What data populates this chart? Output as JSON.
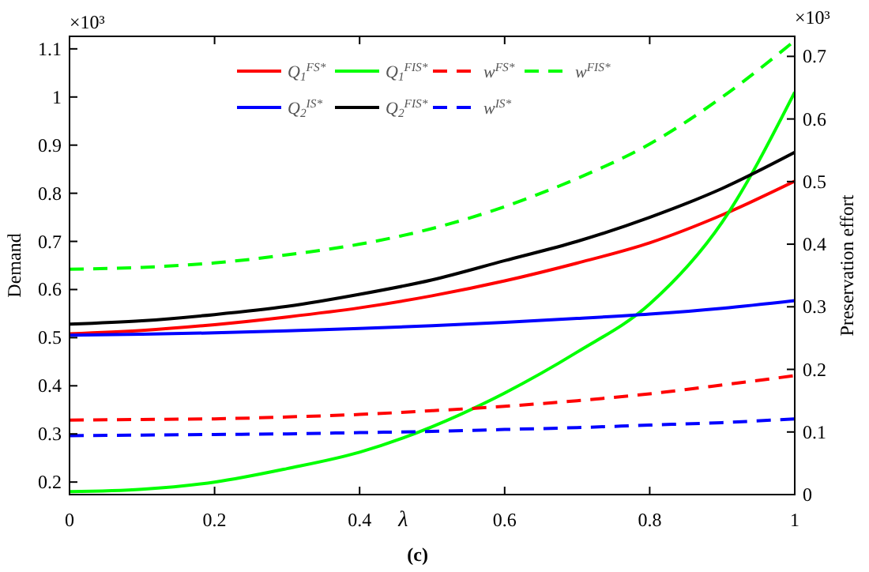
{
  "chart_data": {
    "type": "line",
    "xlabel": "λ",
    "ylabel": "Demand",
    "y2label": "Preservation effort",
    "x": [
      0,
      0.1,
      0.2,
      0.3,
      0.4,
      0.5,
      0.6,
      0.7,
      0.8,
      0.9,
      1
    ],
    "xlim": [
      0,
      1
    ],
    "xticks": [
      0,
      0.2,
      0.4,
      0.6,
      0.8,
      1
    ],
    "ylim": [
      0.174,
      1.126
    ],
    "yticks": [
      0.2,
      0.3,
      0.4,
      0.5,
      0.6,
      0.7,
      0.8,
      0.9,
      1,
      1.1
    ],
    "y2lim": [
      0,
      0.732
    ],
    "y2ticks": [
      0,
      0.1,
      0.2,
      0.3,
      0.4,
      0.5,
      0.6,
      0.7
    ],
    "grid": false,
    "legend": "top",
    "annotations": [
      "×10³",
      "×10³",
      "(c)"
    ],
    "series": [
      {
        "name": "Q$_{1}$$^{FS*}$",
        "color": "#ff0000",
        "line_style": "solid",
        "values": [
          0.508,
          0.515,
          0.527,
          0.543,
          0.562,
          0.587,
          0.618,
          0.655,
          0.697,
          0.755,
          0.825
        ]
      },
      {
        "name": "Q$_{1}$$^{FIS*}$",
        "color": "#00ff00",
        "line_style": "solid",
        "values": [
          0.18,
          0.185,
          0.2,
          0.228,
          0.262,
          0.315,
          0.385,
          0.47,
          0.57,
          0.74,
          1.01
        ]
      },
      {
        "name": "w$^{FS*}$",
        "color": "#ff0000",
        "line_style": "dashed",
        "axis": "y2",
        "values": [
          0.119,
          0.12,
          0.121,
          0.124,
          0.128,
          0.134,
          0.141,
          0.15,
          0.161,
          0.175,
          0.19
        ]
      },
      {
        "name": "w$^{FIS*}$",
        "color": "#00ff00",
        "line_style": "dashed",
        "axis": "y2",
        "values": [
          0.36,
          0.363,
          0.37,
          0.383,
          0.4,
          0.425,
          0.46,
          0.505,
          0.56,
          0.635,
          0.725
        ]
      },
      {
        "name": "Q$_{2}$$^{IS*}$",
        "color": "#0000ff",
        "line_style": "solid",
        "values": [
          0.505,
          0.507,
          0.51,
          0.514,
          0.519,
          0.525,
          0.532,
          0.54,
          0.549,
          0.561,
          0.577
        ]
      },
      {
        "name": "Q$_{2}$$^{FIS*}$",
        "color": "#000000",
        "line_style": "solid",
        "values": [
          0.528,
          0.535,
          0.548,
          0.565,
          0.59,
          0.62,
          0.66,
          0.7,
          0.75,
          0.81,
          0.885
        ]
      },
      {
        "name": "w$^{IS*}$",
        "color": "#0000ff",
        "line_style": "dashed",
        "axis": "y2",
        "values": [
          0.094,
          0.095,
          0.096,
          0.097,
          0.099,
          0.101,
          0.104,
          0.107,
          0.111,
          0.115,
          0.121
        ]
      }
    ]
  }
}
